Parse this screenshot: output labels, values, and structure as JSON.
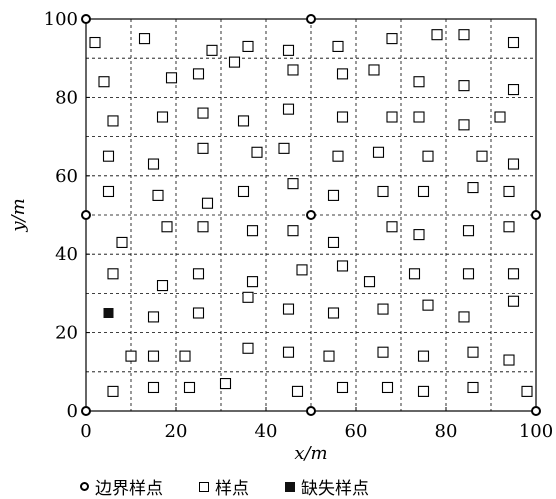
{
  "chart_data": {
    "type": "scatter",
    "title": "",
    "xlabel": "x/m",
    "ylabel": "y/m",
    "xlim": [
      0,
      100
    ],
    "ylim": [
      0,
      100
    ],
    "xticks": [
      "0",
      "20",
      "40",
      "60",
      "80",
      "100"
    ],
    "yticks": [
      "0",
      "20",
      "40",
      "60",
      "80",
      "100"
    ],
    "grid": "dashed, 10 m spacing",
    "legend_position": "bottom",
    "legend": [
      "边界样点",
      "样点",
      "缺失样点"
    ],
    "series": [
      {
        "name": "边界样点",
        "marker": "open-circle",
        "points": [
          [
            0,
            100
          ],
          [
            50,
            100
          ],
          [
            0,
            50
          ],
          [
            50,
            50
          ],
          [
            100,
            50
          ],
          [
            0,
            0
          ],
          [
            50,
            0
          ],
          [
            100,
            0
          ]
        ]
      },
      {
        "name": "样点",
        "marker": "open-square",
        "points": [
          [
            2,
            94
          ],
          [
            13,
            95
          ],
          [
            28,
            92
          ],
          [
            36,
            93
          ],
          [
            45,
            92
          ],
          [
            56,
            93
          ],
          [
            68,
            95
          ],
          [
            78,
            96
          ],
          [
            84,
            96
          ],
          [
            95,
            94
          ],
          [
            4,
            84
          ],
          [
            19,
            85
          ],
          [
            25,
            86
          ],
          [
            33,
            89
          ],
          [
            46,
            87
          ],
          [
            57,
            86
          ],
          [
            64,
            87
          ],
          [
            74,
            84
          ],
          [
            84,
            83
          ],
          [
            95,
            82
          ],
          [
            6,
            74
          ],
          [
            17,
            75
          ],
          [
            26,
            76
          ],
          [
            35,
            74
          ],
          [
            45,
            77
          ],
          [
            57,
            75
          ],
          [
            68,
            75
          ],
          [
            74,
            75
          ],
          [
            84,
            73
          ],
          [
            92,
            75
          ],
          [
            5,
            65
          ],
          [
            15,
            63
          ],
          [
            26,
            67
          ],
          [
            38,
            66
          ],
          [
            44,
            67
          ],
          [
            56,
            65
          ],
          [
            65,
            66
          ],
          [
            76,
            65
          ],
          [
            88,
            65
          ],
          [
            95,
            63
          ],
          [
            5,
            56
          ],
          [
            16,
            55
          ],
          [
            27,
            53
          ],
          [
            35,
            56
          ],
          [
            46,
            58
          ],
          [
            55,
            55
          ],
          [
            66,
            56
          ],
          [
            75,
            56
          ],
          [
            86,
            57
          ],
          [
            94,
            56
          ],
          [
            8,
            43
          ],
          [
            18,
            47
          ],
          [
            26,
            47
          ],
          [
            37,
            46
          ],
          [
            46,
            46
          ],
          [
            55,
            43
          ],
          [
            68,
            47
          ],
          [
            74,
            45
          ],
          [
            85,
            46
          ],
          [
            94,
            47
          ],
          [
            6,
            35
          ],
          [
            17,
            32
          ],
          [
            25,
            35
          ],
          [
            37,
            33
          ],
          [
            48,
            36
          ],
          [
            57,
            37
          ],
          [
            63,
            33
          ],
          [
            73,
            35
          ],
          [
            85,
            35
          ],
          [
            95,
            35
          ],
          [
            15,
            24
          ],
          [
            25,
            25
          ],
          [
            36,
            29
          ],
          [
            45,
            26
          ],
          [
            55,
            25
          ],
          [
            66,
            26
          ],
          [
            76,
            27
          ],
          [
            84,
            24
          ],
          [
            95,
            28
          ],
          [
            10,
            14
          ],
          [
            15,
            14
          ],
          [
            22,
            14
          ],
          [
            36,
            16
          ],
          [
            45,
            15
          ],
          [
            54,
            14
          ],
          [
            66,
            15
          ],
          [
            75,
            14
          ],
          [
            86,
            15
          ],
          [
            94,
            13
          ],
          [
            6,
            5
          ],
          [
            15,
            6
          ],
          [
            23,
            6
          ],
          [
            31,
            7
          ],
          [
            47,
            5
          ],
          [
            57,
            6
          ],
          [
            67,
            6
          ],
          [
            75,
            5
          ],
          [
            86,
            6
          ],
          [
            98,
            5
          ]
        ]
      },
      {
        "name": "缺失样点",
        "marker": "filled-square",
        "points": [
          [
            5,
            25
          ]
        ]
      }
    ]
  }
}
